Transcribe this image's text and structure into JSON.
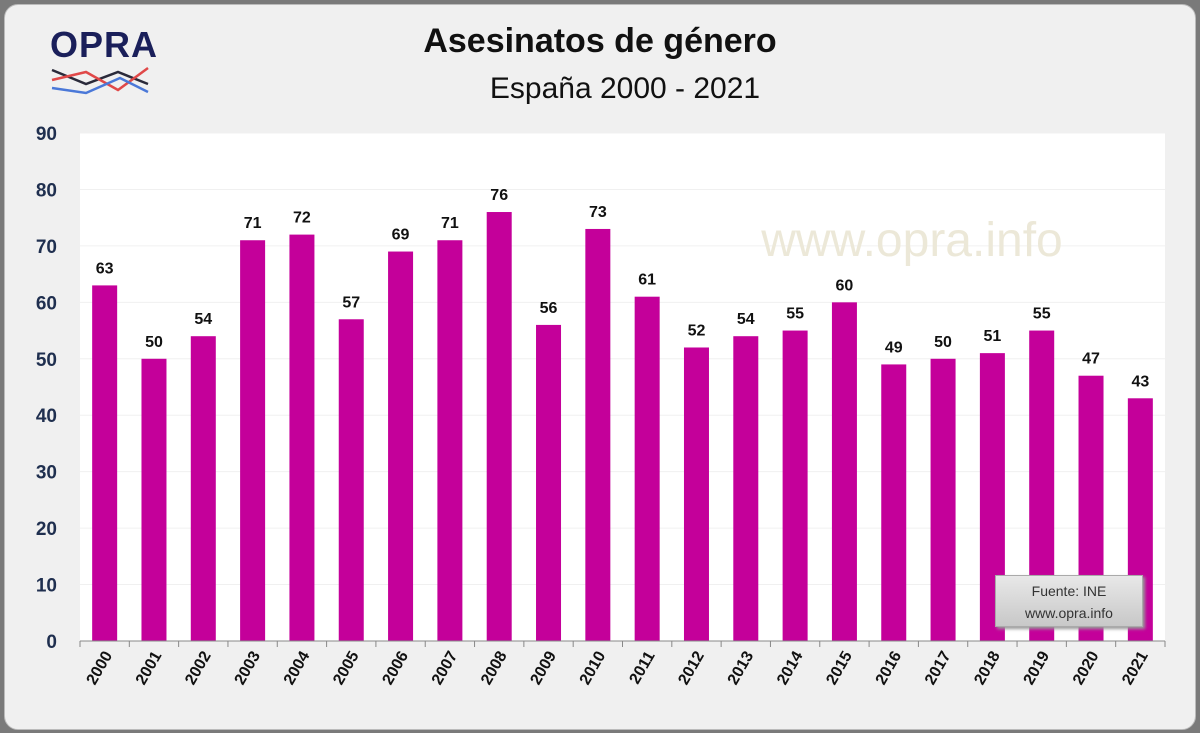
{
  "logo_text": "OPRA",
  "chart_data": {
    "type": "bar",
    "title": "Asesinatos de género",
    "subtitle": "España 2000 - 2021",
    "categories": [
      "2000",
      "2001",
      "2002",
      "2003",
      "2004",
      "2005",
      "2006",
      "2007",
      "2008",
      "2009",
      "2010",
      "2011",
      "2012",
      "2013",
      "2014",
      "2015",
      "2016",
      "2017",
      "2018",
      "2019",
      "2020",
      "2021"
    ],
    "values": [
      63,
      50,
      54,
      71,
      72,
      57,
      69,
      71,
      76,
      56,
      73,
      61,
      52,
      54,
      55,
      60,
      49,
      50,
      51,
      55,
      47,
      43
    ],
    "ylim": [
      0,
      90
    ],
    "yticks": [
      0,
      10,
      20,
      30,
      40,
      50,
      60,
      70,
      80,
      90
    ],
    "grid": true,
    "bar_color": "#c4009a",
    "watermark": "www.opra.info",
    "source": {
      "line1": "Fuente: INE",
      "line2": "www.opra.info"
    }
  }
}
